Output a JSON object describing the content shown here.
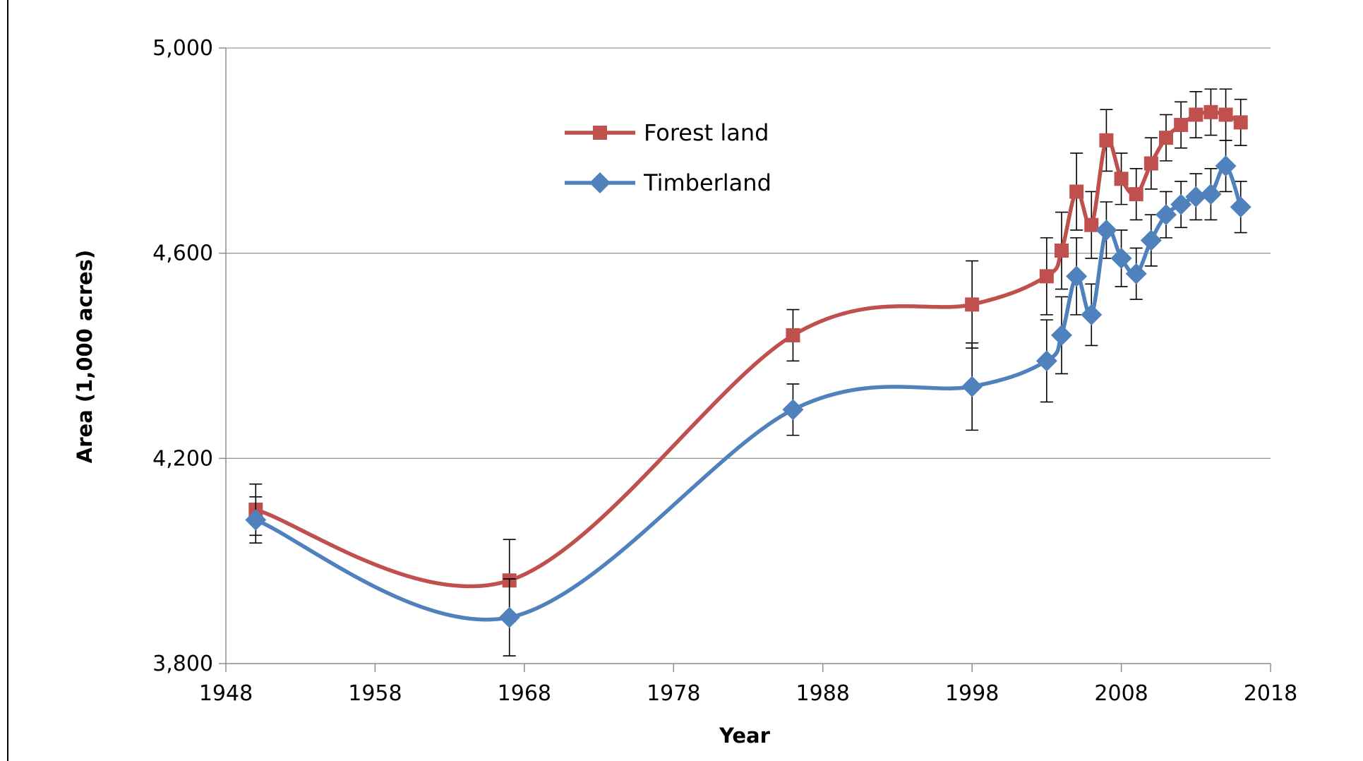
{
  "chart_data": {
    "type": "line",
    "title": "",
    "xlabel": "Year",
    "ylabel": "Area (1,000 acres)",
    "xlim": [
      1948,
      2018
    ],
    "ylim": [
      3800,
      5000
    ],
    "xticks": [
      1948,
      1958,
      1968,
      1978,
      1988,
      1998,
      2008,
      2018
    ],
    "yticks": [
      3800,
      4200,
      4600,
      5000
    ],
    "xtick_labels": [
      "1948",
      "1958",
      "1968",
      "1978",
      "1988",
      "1998",
      "2008",
      "2018"
    ],
    "ytick_labels": [
      "3,800",
      "4,200",
      "4,600",
      "5,000"
    ],
    "grid": "horizontal",
    "legend_position": "top-left inside plot",
    "series": [
      {
        "name": "Forest land",
        "color": "#C0504D",
        "marker": "square",
        "x": [
          1950,
          1967,
          1986,
          1998,
          2003,
          2004,
          2005,
          2006,
          2007,
          2008,
          2009,
          2010,
          2011,
          2012,
          2013,
          2014,
          2015,
          2016
        ],
        "y": [
          4100,
          3962,
          4440,
          4500,
          4555,
          4605,
          4720,
          4655,
          4820,
          4745,
          4715,
          4775,
          4825,
          4850,
          4870,
          4875,
          4870,
          4855
        ],
        "err": [
          50,
          80,
          50,
          85,
          75,
          75,
          75,
          65,
          60,
          50,
          50,
          50,
          45,
          45,
          45,
          45,
          50,
          45
        ]
      },
      {
        "name": "Timberland",
        "color": "#4F81BD",
        "marker": "diamond",
        "x": [
          1950,
          1967,
          1986,
          1998,
          2003,
          2004,
          2005,
          2006,
          2007,
          2008,
          2009,
          2010,
          2011,
          2012,
          2013,
          2014,
          2015,
          2016
        ],
        "y": [
          4080,
          3890,
          4295,
          4340,
          4390,
          4440,
          4555,
          4480,
          4645,
          4590,
          4560,
          4625,
          4675,
          4695,
          4710,
          4715,
          4770,
          4690
        ],
        "err": [
          45,
          75,
          50,
          85,
          80,
          75,
          75,
          60,
          55,
          55,
          50,
          50,
          45,
          45,
          45,
          50,
          50,
          50
        ]
      }
    ]
  }
}
